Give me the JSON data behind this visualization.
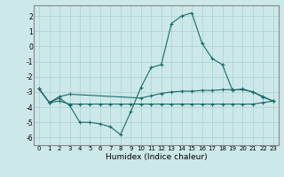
{
  "xlabel": "Humidex (Indice chaleur)",
  "bg_color": "#cce8e8",
  "grid_color": "#aad0d0",
  "line_color": "#1a6b6b",
  "xlim": [
    -0.5,
    23.5
  ],
  "ylim": [
    -6.5,
    2.7
  ],
  "xticks": [
    0,
    1,
    2,
    3,
    4,
    5,
    6,
    7,
    8,
    9,
    10,
    11,
    12,
    13,
    14,
    15,
    16,
    17,
    18,
    19,
    20,
    21,
    22,
    23
  ],
  "yticks": [
    -6,
    -5,
    -4,
    -3,
    -2,
    -1,
    0,
    1,
    2
  ],
  "line1_x": [
    0,
    1,
    2,
    3,
    4,
    5,
    6,
    7,
    8,
    9,
    10,
    11,
    12,
    13,
    14,
    15,
    16,
    17,
    18,
    19,
    20,
    21,
    22,
    23
  ],
  "line1_y": [
    -2.8,
    -3.7,
    -3.4,
    -3.9,
    -5.0,
    -5.0,
    -5.1,
    -5.3,
    -5.8,
    -4.3,
    -2.7,
    -1.4,
    -1.2,
    1.5,
    2.0,
    2.2,
    0.2,
    -0.8,
    -1.2,
    -2.9,
    -2.8,
    -3.0,
    -3.3,
    -3.6
  ],
  "line2_x": [
    0,
    1,
    2,
    3,
    10,
    11,
    12,
    13,
    14,
    15,
    16,
    17,
    18,
    19,
    20,
    21,
    22,
    23
  ],
  "line2_y": [
    -2.8,
    -3.7,
    -3.3,
    -3.15,
    -3.4,
    -3.25,
    -3.1,
    -3.0,
    -2.95,
    -2.95,
    -2.9,
    -2.9,
    -2.85,
    -2.85,
    -2.85,
    -3.0,
    -3.35,
    -3.6
  ],
  "line3_x": [
    0,
    1,
    2,
    3,
    4,
    5,
    6,
    7,
    8,
    9,
    10,
    11,
    12,
    13,
    14,
    15,
    16,
    17,
    18,
    19,
    20,
    21,
    22,
    23
  ],
  "line3_y": [
    -2.8,
    -3.7,
    -3.6,
    -3.8,
    -3.8,
    -3.8,
    -3.8,
    -3.8,
    -3.8,
    -3.8,
    -3.8,
    -3.8,
    -3.8,
    -3.8,
    -3.8,
    -3.8,
    -3.8,
    -3.8,
    -3.8,
    -3.8,
    -3.8,
    -3.8,
    -3.7,
    -3.6
  ]
}
